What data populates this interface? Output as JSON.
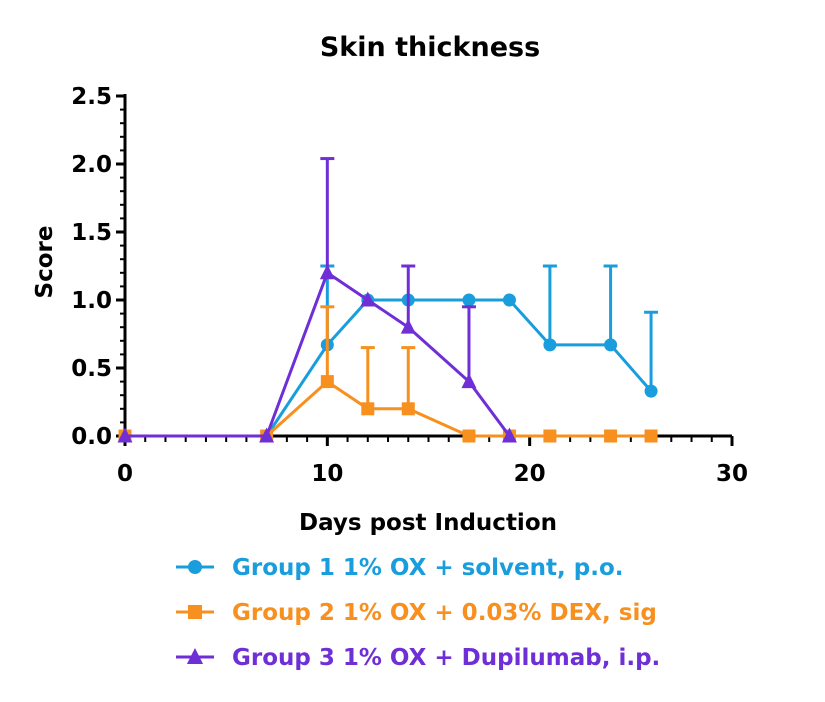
{
  "chart_data": {
    "type": "line",
    "title": "Skin thickness",
    "xlabel": "Days post Induction",
    "ylabel": "Score",
    "xlim": [
      0,
      30
    ],
    "ylim": [
      0,
      2.5
    ],
    "xticks": [
      "0",
      "10",
      "20",
      "30"
    ],
    "yticks": [
      "0.0",
      "0.5",
      "1.0",
      "1.5",
      "2.0",
      "2.5"
    ],
    "legend_position": "bottom",
    "series": [
      {
        "name": "Group 1 1% OX + solvent, p.o.",
        "color": "#1a9ddc",
        "marker": "circle",
        "x": [
          0,
          7,
          10,
          12,
          14,
          17,
          19,
          21,
          24,
          26
        ],
        "y": [
          0,
          0,
          0.67,
          1.0,
          1.0,
          1.0,
          1.0,
          0.67,
          0.67,
          0.33
        ],
        "err": [
          0,
          0,
          0.58,
          0,
          0,
          0,
          0,
          0.58,
          0.58,
          0.58
        ]
      },
      {
        "name": "Group 2 1% OX + 0.03% DEX, sig",
        "color": "#f7901e",
        "marker": "square",
        "x": [
          0,
          7,
          10,
          12,
          14,
          17,
          19,
          21,
          24,
          26
        ],
        "y": [
          0,
          0,
          0.4,
          0.2,
          0.2,
          0,
          0,
          0,
          0,
          0
        ],
        "err": [
          0,
          0,
          0.55,
          0.45,
          0.45,
          0,
          0,
          0,
          0,
          0
        ]
      },
      {
        "name": "Group 3 1% OX + Dupilumab, i.p.",
        "color": "#6f2fd6",
        "marker": "triangle",
        "x": [
          0,
          7,
          10,
          12,
          14,
          17,
          19
        ],
        "y": [
          0,
          0,
          1.2,
          1.0,
          0.8,
          0.4,
          0
        ],
        "err": [
          0,
          0,
          0.84,
          0,
          0.45,
          0.55,
          0
        ]
      }
    ]
  }
}
